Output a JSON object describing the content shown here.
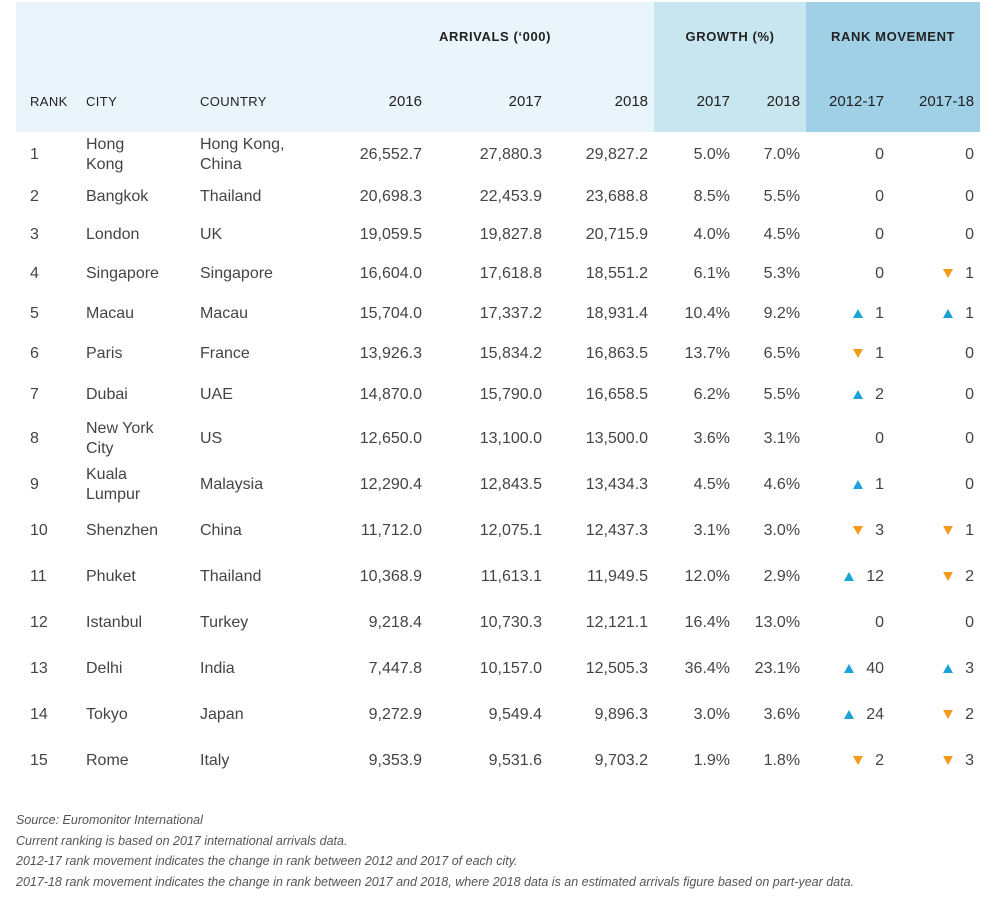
{
  "chart_data": {
    "type": "table",
    "group_headers": {
      "arrivals": "ARRIVALS (‘000)",
      "growth": "GROWTH (%)",
      "rank_movement": "RANK MOVEMENT"
    },
    "columns": {
      "rank": "RANK",
      "city": "CITY",
      "country": "COUNTRY",
      "a2016": "2016",
      "a2017": "2017",
      "a2018": "2018",
      "g2017": "2017",
      "g2018": "2018",
      "m1217": "2012-17",
      "m1718": "2017-18"
    },
    "rows": [
      {
        "rank": "1",
        "city": "Hong Kong",
        "country": "Hong Kong, China",
        "a2016": "26,552.7",
        "a2017": "27,880.3",
        "a2018": "29,827.2",
        "g2017": "5.0%",
        "g2018": "7.0%",
        "m1217": {
          "dir": "",
          "val": "0"
        },
        "m1718": {
          "dir": "",
          "val": "0"
        }
      },
      {
        "rank": "2",
        "city": "Bangkok",
        "country": "Thailand",
        "a2016": "20,698.3",
        "a2017": "22,453.9",
        "a2018": "23,688.8",
        "g2017": "8.5%",
        "g2018": "5.5%",
        "m1217": {
          "dir": "",
          "val": "0"
        },
        "m1718": {
          "dir": "",
          "val": "0"
        }
      },
      {
        "rank": "3",
        "city": "London",
        "country": "UK",
        "a2016": "19,059.5",
        "a2017": "19,827.8",
        "a2018": "20,715.9",
        "g2017": "4.0%",
        "g2018": "4.5%",
        "m1217": {
          "dir": "",
          "val": "0"
        },
        "m1718": {
          "dir": "",
          "val": "0"
        }
      },
      {
        "rank": "4",
        "city": "Singapore",
        "country": "Singapore",
        "a2016": "16,604.0",
        "a2017": "17,618.8",
        "a2018": "18,551.2",
        "g2017": "6.1%",
        "g2018": "5.3%",
        "m1217": {
          "dir": "",
          "val": "0"
        },
        "m1718": {
          "dir": "down",
          "val": "1"
        }
      },
      {
        "rank": "5",
        "city": "Macau",
        "country": "Macau",
        "a2016": "15,704.0",
        "a2017": "17,337.2",
        "a2018": "18,931.4",
        "g2017": "10.4%",
        "g2018": "9.2%",
        "m1217": {
          "dir": "up",
          "val": "1"
        },
        "m1718": {
          "dir": "up",
          "val": "1"
        }
      },
      {
        "rank": "6",
        "city": "Paris",
        "country": "France",
        "a2016": "13,926.3",
        "a2017": "15,834.2",
        "a2018": "16,863.5",
        "g2017": "13.7%",
        "g2018": "6.5%",
        "m1217": {
          "dir": "down",
          "val": "1"
        },
        "m1718": {
          "dir": "",
          "val": "0"
        }
      },
      {
        "rank": "7",
        "city": "Dubai",
        "country": "UAE",
        "a2016": "14,870.0",
        "a2017": "15,790.0",
        "a2018": "16,658.5",
        "g2017": "6.2%",
        "g2018": "5.5%",
        "m1217": {
          "dir": "up",
          "val": "2"
        },
        "m1718": {
          "dir": "",
          "val": "0"
        }
      },
      {
        "rank": "8",
        "city": "New York City",
        "country": "US",
        "a2016": "12,650.0",
        "a2017": "13,100.0",
        "a2018": "13,500.0",
        "g2017": "3.6%",
        "g2018": "3.1%",
        "m1217": {
          "dir": "",
          "val": "0"
        },
        "m1718": {
          "dir": "",
          "val": "0"
        }
      },
      {
        "rank": "9",
        "city": "Kuala Lumpur",
        "country": "Malaysia",
        "a2016": "12,290.4",
        "a2017": "12,843.5",
        "a2018": "13,434.3",
        "g2017": "4.5%",
        "g2018": "4.6%",
        "m1217": {
          "dir": "up",
          "val": "1"
        },
        "m1718": {
          "dir": "",
          "val": "0"
        }
      },
      {
        "rank": "10",
        "city": "Shenzhen",
        "country": "China",
        "a2016": "11,712.0",
        "a2017": "12,075.1",
        "a2018": "12,437.3",
        "g2017": "3.1%",
        "g2018": "3.0%",
        "m1217": {
          "dir": "down",
          "val": "3"
        },
        "m1718": {
          "dir": "down",
          "val": "1"
        }
      },
      {
        "rank": "11",
        "city": "Phuket",
        "country": "Thailand",
        "a2016": "10,368.9",
        "a2017": "11,613.1",
        "a2018": "11,949.5",
        "g2017": "12.0%",
        "g2018": "2.9%",
        "m1217": {
          "dir": "up",
          "val": "12"
        },
        "m1718": {
          "dir": "down",
          "val": "2"
        }
      },
      {
        "rank": "12",
        "city": "Istanbul",
        "country": "Turkey",
        "a2016": "9,218.4",
        "a2017": "10,730.3",
        "a2018": "12,121.1",
        "g2017": "16.4%",
        "g2018": "13.0%",
        "m1217": {
          "dir": "",
          "val": "0"
        },
        "m1718": {
          "dir": "",
          "val": "0"
        }
      },
      {
        "rank": "13",
        "city": "Delhi",
        "country": "India",
        "a2016": "7,447.8",
        "a2017": "10,157.0",
        "a2018": "12,505.3",
        "g2017": "36.4%",
        "g2018": "23.1%",
        "m1217": {
          "dir": "up",
          "val": "40"
        },
        "m1718": {
          "dir": "up",
          "val": "3"
        }
      },
      {
        "rank": "14",
        "city": "Tokyo",
        "country": "Japan",
        "a2016": "9,272.9",
        "a2017": "9,549.4",
        "a2018": "9,896.3",
        "g2017": "3.0%",
        "g2018": "3.6%",
        "m1217": {
          "dir": "up",
          "val": "24"
        },
        "m1718": {
          "dir": "down",
          "val": "2"
        }
      },
      {
        "rank": "15",
        "city": "Rome",
        "country": "Italy",
        "a2016": "9,353.9",
        "a2017": "9,531.6",
        "a2018": "9,703.2",
        "g2017": "1.9%",
        "g2018": "1.8%",
        "m1217": {
          "dir": "down",
          "val": "2"
        },
        "m1718": {
          "dir": "down",
          "val": "3"
        }
      }
    ],
    "colors": {
      "up": "#1aa3d6",
      "down": "#f39a1a",
      "header_base": "#eaf4fb",
      "header_growth": "#c8e6ef",
      "header_rank": "#9fd0e6"
    }
  },
  "notes": [
    "Source: Euromonitor International",
    "Current ranking is based on 2017 international arrivals data.",
    "2012-17 rank movement indicates the change in rank between 2012 and 2017 of each city.",
    "2017-18 rank movement indicates the change in rank between 2017 and 2018, where 2018 data is an estimated arrivals figure based on part-year data."
  ]
}
